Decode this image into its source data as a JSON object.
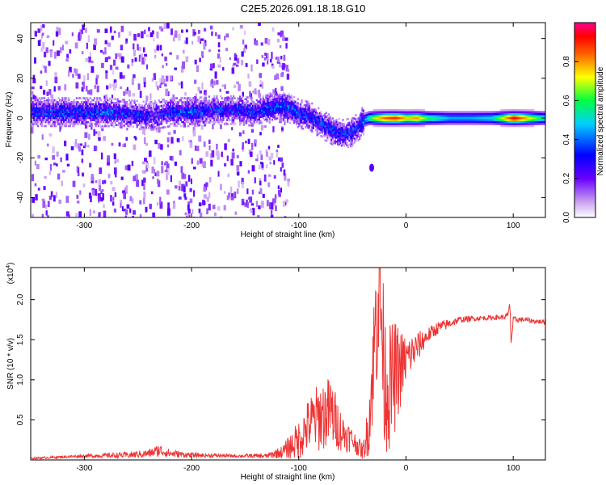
{
  "figure": {
    "title": "C2E5.2026.091.18.18.G10"
  },
  "chart_data": [
    {
      "type": "heatmap",
      "xlabel": "Height of straight line (km)",
      "ylabel": "Frequency (Hz)",
      "xlim": [
        -350,
        130
      ],
      "ylim": [
        -50,
        48
      ],
      "xticks": [
        -300,
        -200,
        -100,
        0,
        100
      ],
      "yticks": [
        -40,
        -20,
        0,
        20,
        40
      ],
      "colorbar": {
        "label": "Normalized spectral amplitude",
        "range": [
          0,
          1
        ],
        "ticks": [
          "0.0",
          "0.2",
          "0.4",
          "0.6",
          "0.8"
        ],
        "colormap": [
          "#ffffff",
          "#8a2be2",
          "#0000ff",
          "#00ffff",
          "#00ff00",
          "#ffff00",
          "#ff8000",
          "#ff0000",
          "#ff00a0"
        ]
      },
      "ridge": {
        "x": [
          -345,
          -320,
          -300,
          -280,
          -260,
          -240,
          -220,
          -200,
          -180,
          -160,
          -140,
          -120,
          -110,
          -100,
          -90,
          -80,
          -70,
          -60,
          -50,
          -45,
          -40,
          -35,
          -30,
          -20,
          -10,
          0,
          10,
          20,
          40,
          60,
          80,
          100,
          130
        ],
        "freq": [
          3,
          3,
          3,
          3,
          2,
          1,
          3,
          3,
          4,
          4,
          3,
          6,
          5,
          2,
          1,
          -3,
          -6,
          -8,
          -7,
          -4,
          -1,
          0,
          0,
          0,
          0,
          0,
          0,
          0,
          0,
          0,
          0,
          0,
          0
        ],
        "amplitude": [
          0.3,
          0.35,
          0.3,
          0.35,
          0.3,
          0.25,
          0.3,
          0.35,
          0.3,
          0.3,
          0.3,
          0.35,
          0.35,
          0.3,
          0.3,
          0.3,
          0.3,
          0.3,
          0.3,
          0.3,
          0.4,
          0.55,
          0.7,
          0.85,
          0.9,
          0.75,
          0.8,
          0.6,
          0.45,
          0.45,
          0.5,
          0.95,
          0.5
        ]
      }
    },
    {
      "type": "line",
      "xlabel": "Height of straight line (km)",
      "ylabel": "SNR (10 * v/v)",
      "scale_note": "(x10",
      "scale_exp": "4",
      "xlim": [
        -350,
        130
      ],
      "ylim": [
        0,
        2.4
      ],
      "xticks": [
        -300,
        -200,
        -100,
        0,
        100
      ],
      "yticks": [
        0.5,
        1.0,
        1.5,
        2.0
      ],
      "series": [
        {
          "color": "#ee3333",
          "x": [
            -350,
            -300,
            -260,
            -240,
            -230,
            -220,
            -200,
            -160,
            -130,
            -115,
            -100,
            -90,
            -80,
            -70,
            -60,
            -50,
            -40,
            -35,
            -30,
            -26,
            -25,
            -20,
            -15,
            -10,
            0,
            10,
            20,
            30,
            50,
            70,
            90,
            95,
            97,
            98,
            100,
            110,
            120,
            130
          ],
          "y": [
            0.02,
            0.05,
            0.06,
            0.08,
            0.12,
            0.08,
            0.06,
            0.05,
            0.05,
            0.1,
            0.25,
            0.45,
            0.55,
            0.6,
            0.35,
            0.25,
            0.1,
            0.4,
            1.3,
            2.2,
            2.3,
            1.0,
            0.9,
            1.05,
            1.25,
            1.4,
            1.55,
            1.65,
            1.75,
            1.77,
            1.78,
            1.8,
            1.95,
            1.45,
            1.75,
            1.75,
            1.73,
            1.72
          ],
          "noise": [
            0.01,
            0.02,
            0.04,
            0.05,
            0.08,
            0.05,
            0.03,
            0.02,
            0.03,
            0.08,
            0.25,
            0.35,
            0.45,
            0.45,
            0.25,
            0.15,
            0.1,
            0.35,
            0.8,
            1.2,
            1.0,
            0.9,
            0.8,
            0.7,
            0.3,
            0.2,
            0.1,
            0.08,
            0.04,
            0.03,
            0.03,
            0.04,
            0.05,
            0.05,
            0.04,
            0.03,
            0.03,
            0.03
          ]
        }
      ]
    }
  ]
}
